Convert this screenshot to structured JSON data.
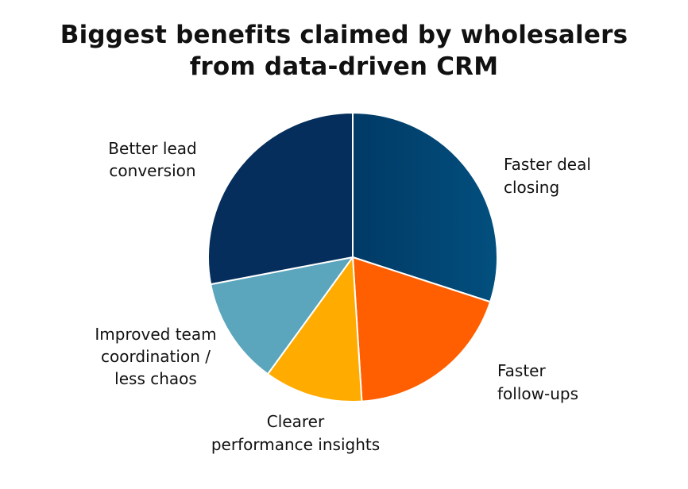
{
  "chart_data": {
    "type": "pie",
    "title_lines": [
      "Biggest benefits claimed by wholesalers",
      "from data-driven CRM"
    ],
    "slices": [
      {
        "label_lines": [
          "Faster deal",
          "closing"
        ],
        "value": 30,
        "color": "#024a78"
      },
      {
        "label_lines": [
          "Faster",
          "follow-ups"
        ],
        "value": 19,
        "color": "#ff5f00"
      },
      {
        "label_lines": [
          "Clearer",
          "performance insights"
        ],
        "value": 11,
        "color": "#ffab00"
      },
      {
        "label_lines": [
          "Improved team",
          "coordination /",
          "less chaos"
        ],
        "value": 12,
        "color": "#5ba5bd"
      },
      {
        "label_lines": [
          "Better lead",
          "conversion"
        ],
        "value": 28,
        "color": "#052e5c"
      }
    ],
    "start_angle_deg": 0,
    "direction": "clockwise",
    "legend": "none"
  }
}
